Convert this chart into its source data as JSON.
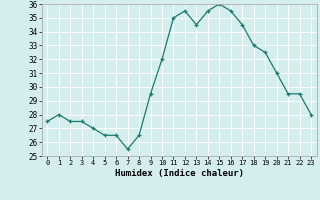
{
  "x": [
    0,
    1,
    2,
    3,
    4,
    5,
    6,
    7,
    8,
    9,
    10,
    11,
    12,
    13,
    14,
    15,
    16,
    17,
    18,
    19,
    20,
    21,
    22,
    23
  ],
  "y": [
    27.5,
    28.0,
    27.5,
    27.5,
    27.0,
    26.5,
    26.5,
    25.5,
    26.5,
    29.5,
    32.0,
    35.0,
    35.5,
    34.5,
    35.5,
    36.0,
    35.5,
    34.5,
    33.0,
    32.5,
    31.0,
    29.5,
    29.5,
    28.0
  ],
  "xlabel": "Humidex (Indice chaleur)",
  "ylabel": "",
  "ylim": [
    25,
    36
  ],
  "xlim": [
    -0.5,
    23.5
  ],
  "yticks": [
    25,
    26,
    27,
    28,
    29,
    30,
    31,
    32,
    33,
    34,
    35,
    36
  ],
  "xticks": [
    0,
    1,
    2,
    3,
    4,
    5,
    6,
    7,
    8,
    9,
    10,
    11,
    12,
    13,
    14,
    15,
    16,
    17,
    18,
    19,
    20,
    21,
    22,
    23
  ],
  "line_color": "#1a7a6e",
  "marker": "+",
  "bg_color": "#d4eeee",
  "grid_color": "#ffffff",
  "spine_color": "#aaaaaa"
}
